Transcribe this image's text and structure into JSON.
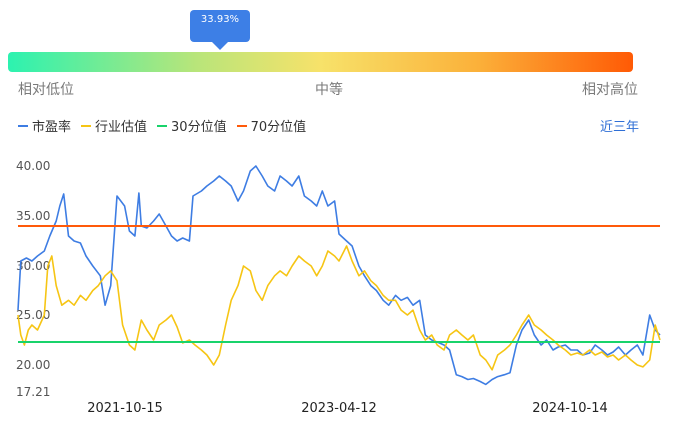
{
  "gauge": {
    "percentile_label": "33.93%",
    "percentile": 33.93,
    "left_label": "相对低位",
    "mid_label": "中等",
    "right_label": "相对高位"
  },
  "legend": [
    {
      "label": "市盈率",
      "color": "#3e7de3"
    },
    {
      "label": "行业估值",
      "color": "#f6c514"
    },
    {
      "label": "30分位值",
      "color": "#19d36b"
    },
    {
      "label": "70分位值",
      "color": "#ff5a0a"
    }
  ],
  "period_label": "近三年",
  "chart_data": {
    "type": "line",
    "ylim": [
      17.21,
      42
    ],
    "y_ticks": [
      "40.00",
      "35.00",
      "30.00",
      "25.00",
      "20.00",
      "17.21"
    ],
    "x_ticks": [
      "2021-10-15",
      "2023-04-12",
      "2024-10-14"
    ],
    "x_range": [
      "2021-01-25",
      "2025-06-27"
    ],
    "series": [
      {
        "name": "市盈率",
        "color": "#3e7de3",
        "points": [
          [
            "2021-01-25",
            25.5
          ],
          [
            "2021-02-01",
            30.5
          ],
          [
            "2021-02-15",
            30.8
          ],
          [
            "2021-03-01",
            30.5
          ],
          [
            "2021-03-15",
            31.0
          ],
          [
            "2021-04-01",
            31.5
          ],
          [
            "2021-04-15",
            33.0
          ],
          [
            "2021-05-01",
            34.5
          ],
          [
            "2021-05-10",
            36.0
          ],
          [
            "2021-05-20",
            37.2
          ],
          [
            "2021-06-01",
            33.0
          ],
          [
            "2021-06-15",
            32.5
          ],
          [
            "2021-07-01",
            32.3
          ],
          [
            "2021-07-15",
            31.0
          ],
          [
            "2021-08-01",
            30.0
          ],
          [
            "2021-08-20",
            29.0
          ],
          [
            "2021-09-01",
            26.0
          ],
          [
            "2021-09-15",
            28.0
          ],
          [
            "2021-10-01",
            37.0
          ],
          [
            "2021-10-20",
            36.0
          ],
          [
            "2021-11-01",
            33.5
          ],
          [
            "2021-11-15",
            33.0
          ],
          [
            "2021-11-25",
            37.3
          ],
          [
            "2021-12-01",
            34.0
          ],
          [
            "2021-12-15",
            33.8
          ],
          [
            "2022-01-01",
            34.5
          ],
          [
            "2022-01-15",
            35.2
          ],
          [
            "2022-02-01",
            34.0
          ],
          [
            "2022-02-15",
            33.0
          ],
          [
            "2022-03-01",
            32.5
          ],
          [
            "2022-03-15",
            32.8
          ],
          [
            "2022-04-01",
            32.5
          ],
          [
            "2022-04-10",
            37.0
          ],
          [
            "2022-05-01",
            37.5
          ],
          [
            "2022-05-15",
            38.0
          ],
          [
            "2022-06-01",
            38.5
          ],
          [
            "2022-06-15",
            39.0
          ],
          [
            "2022-07-01",
            38.5
          ],
          [
            "2022-07-15",
            38.0
          ],
          [
            "2022-08-01",
            36.5
          ],
          [
            "2022-08-15",
            37.5
          ],
          [
            "2022-09-01",
            39.5
          ],
          [
            "2022-09-15",
            40.0
          ],
          [
            "2022-10-01",
            39.0
          ],
          [
            "2022-10-15",
            38.0
          ],
          [
            "2022-11-01",
            37.5
          ],
          [
            "2022-11-15",
            39.0
          ],
          [
            "2022-12-01",
            38.5
          ],
          [
            "2022-12-15",
            38.0
          ],
          [
            "2023-01-01",
            39.0
          ],
          [
            "2023-01-15",
            37.0
          ],
          [
            "2023-02-01",
            36.5
          ],
          [
            "2023-02-15",
            36.0
          ],
          [
            "2023-03-01",
            37.5
          ],
          [
            "2023-03-15",
            36.0
          ],
          [
            "2023-04-01",
            36.5
          ],
          [
            "2023-04-12",
            33.2
          ],
          [
            "2023-05-01",
            32.5
          ],
          [
            "2023-05-15",
            32.0
          ],
          [
            "2023-06-01",
            30.0
          ],
          [
            "2023-06-15",
            29.0
          ],
          [
            "2023-07-01",
            28.0
          ],
          [
            "2023-07-15",
            27.5
          ],
          [
            "2023-08-01",
            26.5
          ],
          [
            "2023-08-15",
            26.0
          ],
          [
            "2023-09-01",
            27.0
          ],
          [
            "2023-09-15",
            26.5
          ],
          [
            "2023-10-01",
            26.8
          ],
          [
            "2023-10-15",
            26.0
          ],
          [
            "2023-11-01",
            26.5
          ],
          [
            "2023-11-15",
            23.0
          ],
          [
            "2023-12-01",
            22.5
          ],
          [
            "2023-12-15",
            22.3
          ],
          [
            "2024-01-01",
            22.0
          ],
          [
            "2024-01-15",
            21.5
          ],
          [
            "2024-02-01",
            19.0
          ],
          [
            "2024-02-15",
            18.8
          ],
          [
            "2024-03-01",
            18.5
          ],
          [
            "2024-03-15",
            18.6
          ],
          [
            "2024-04-01",
            18.3
          ],
          [
            "2024-04-15",
            18.0
          ],
          [
            "2024-05-01",
            18.5
          ],
          [
            "2024-05-15",
            18.8
          ],
          [
            "2024-06-01",
            19.0
          ],
          [
            "2024-06-15",
            19.2
          ],
          [
            "2024-07-01",
            22.0
          ],
          [
            "2024-07-15",
            23.5
          ],
          [
            "2024-08-01",
            24.5
          ],
          [
            "2024-08-15",
            23.0
          ],
          [
            "2024-09-01",
            22.0
          ],
          [
            "2024-09-15",
            22.5
          ],
          [
            "2024-10-01",
            21.5
          ],
          [
            "2024-10-14",
            21.8
          ],
          [
            "2024-11-01",
            22.0
          ],
          [
            "2024-11-15",
            21.5
          ],
          [
            "2024-12-01",
            21.5
          ],
          [
            "2024-12-15",
            21.0
          ],
          [
            "2025-01-01",
            21.2
          ],
          [
            "2025-01-15",
            22.0
          ],
          [
            "2025-02-01",
            21.5
          ],
          [
            "2025-02-15",
            21.0
          ],
          [
            "2025-03-01",
            21.3
          ],
          [
            "2025-03-15",
            21.8
          ],
          [
            "2025-04-01",
            21.0
          ],
          [
            "2025-04-15",
            21.5
          ],
          [
            "2025-05-01",
            22.0
          ],
          [
            "2025-05-15",
            21.0
          ],
          [
            "2025-06-01",
            25.0
          ],
          [
            "2025-06-15",
            23.5
          ],
          [
            "2025-06-27",
            23.0
          ]
        ]
      },
      {
        "name": "行业估值",
        "color": "#f6c514",
        "points": [
          [
            "2021-01-25",
            25.0
          ],
          [
            "2021-02-01",
            23.0
          ],
          [
            "2021-02-10",
            22.0
          ],
          [
            "2021-02-20",
            23.5
          ],
          [
            "2021-03-01",
            24.0
          ],
          [
            "2021-03-15",
            23.5
          ],
          [
            "2021-04-01",
            25.0
          ],
          [
            "2021-04-10",
            30.0
          ],
          [
            "2021-04-20",
            31.0
          ],
          [
            "2021-05-01",
            28.0
          ],
          [
            "2021-05-15",
            26.0
          ],
          [
            "2021-06-01",
            26.5
          ],
          [
            "2021-06-15",
            26.0
          ],
          [
            "2021-07-01",
            27.0
          ],
          [
            "2021-07-15",
            26.5
          ],
          [
            "2021-08-01",
            27.5
          ],
          [
            "2021-08-15",
            28.0
          ],
          [
            "2021-09-01",
            29.0
          ],
          [
            "2021-09-15",
            29.5
          ],
          [
            "2021-10-01",
            28.5
          ],
          [
            "2021-10-15",
            24.0
          ],
          [
            "2021-11-01",
            22.0
          ],
          [
            "2021-11-15",
            21.5
          ],
          [
            "2021-12-01",
            24.5
          ],
          [
            "2021-12-15",
            23.5
          ],
          [
            "2022-01-01",
            22.5
          ],
          [
            "2022-01-15",
            24.0
          ],
          [
            "2022-02-01",
            24.5
          ],
          [
            "2022-02-15",
            25.0
          ],
          [
            "2022-03-01",
            23.8
          ],
          [
            "2022-03-15",
            22.2
          ],
          [
            "2022-04-01",
            22.5
          ],
          [
            "2022-04-15",
            22.0
          ],
          [
            "2022-05-01",
            21.5
          ],
          [
            "2022-05-15",
            21.0
          ],
          [
            "2022-06-01",
            20.0
          ],
          [
            "2022-06-15",
            21.0
          ],
          [
            "2022-07-01",
            24.0
          ],
          [
            "2022-07-15",
            26.5
          ],
          [
            "2022-08-01",
            28.0
          ],
          [
            "2022-08-15",
            30.0
          ],
          [
            "2022-09-01",
            29.5
          ],
          [
            "2022-09-15",
            27.5
          ],
          [
            "2022-10-01",
            26.5
          ],
          [
            "2022-10-15",
            28.0
          ],
          [
            "2022-11-01",
            29.0
          ],
          [
            "2022-11-15",
            29.5
          ],
          [
            "2022-12-01",
            29.0
          ],
          [
            "2022-12-15",
            30.0
          ],
          [
            "2023-01-01",
            31.0
          ],
          [
            "2023-01-15",
            30.5
          ],
          [
            "2023-02-01",
            30.0
          ],
          [
            "2023-02-15",
            29.0
          ],
          [
            "2023-03-01",
            30.0
          ],
          [
            "2023-03-15",
            31.5
          ],
          [
            "2023-04-01",
            31.0
          ],
          [
            "2023-04-12",
            30.5
          ],
          [
            "2023-05-01",
            32.0
          ],
          [
            "2023-05-15",
            30.5
          ],
          [
            "2023-06-01",
            29.0
          ],
          [
            "2023-06-15",
            29.5
          ],
          [
            "2023-07-01",
            28.5
          ],
          [
            "2023-07-15",
            28.0
          ],
          [
            "2023-08-01",
            27.0
          ],
          [
            "2023-08-15",
            26.5
          ],
          [
            "2023-09-01",
            26.5
          ],
          [
            "2023-09-15",
            25.5
          ],
          [
            "2023-10-01",
            25.0
          ],
          [
            "2023-10-15",
            25.5
          ],
          [
            "2023-11-01",
            23.5
          ],
          [
            "2023-11-15",
            22.5
          ],
          [
            "2023-12-01",
            23.0
          ],
          [
            "2023-12-15",
            22.0
          ],
          [
            "2024-01-01",
            21.5
          ],
          [
            "2024-01-15",
            23.0
          ],
          [
            "2024-02-01",
            23.5
          ],
          [
            "2024-02-15",
            23.0
          ],
          [
            "2024-03-01",
            22.5
          ],
          [
            "2024-03-15",
            23.0
          ],
          [
            "2024-04-01",
            21.0
          ],
          [
            "2024-04-15",
            20.5
          ],
          [
            "2024-05-01",
            19.5
          ],
          [
            "2024-05-15",
            21.0
          ],
          [
            "2024-06-01",
            21.5
          ],
          [
            "2024-06-15",
            22.0
          ],
          [
            "2024-07-01",
            23.0
          ],
          [
            "2024-07-15",
            24.0
          ],
          [
            "2024-08-01",
            25.0
          ],
          [
            "2024-08-15",
            24.0
          ],
          [
            "2024-09-01",
            23.5
          ],
          [
            "2024-09-15",
            23.0
          ],
          [
            "2024-10-01",
            22.5
          ],
          [
            "2024-10-14",
            22.0
          ],
          [
            "2024-11-01",
            21.5
          ],
          [
            "2024-11-15",
            21.0
          ],
          [
            "2024-12-01",
            21.2
          ],
          [
            "2024-12-15",
            21.0
          ],
          [
            "2025-01-01",
            21.5
          ],
          [
            "2025-01-15",
            21.0
          ],
          [
            "2025-02-01",
            21.3
          ],
          [
            "2025-02-15",
            20.8
          ],
          [
            "2025-03-01",
            21.0
          ],
          [
            "2025-03-15",
            20.5
          ],
          [
            "2025-04-01",
            21.0
          ],
          [
            "2025-04-15",
            20.5
          ],
          [
            "2025-05-01",
            20.0
          ],
          [
            "2025-05-15",
            19.8
          ],
          [
            "2025-06-01",
            20.5
          ],
          [
            "2025-06-15",
            24.0
          ],
          [
            "2025-06-27",
            22.5
          ]
        ]
      },
      {
        "name": "30分位值",
        "color": "#19d36b",
        "constant": 22.3
      },
      {
        "name": "70分位值",
        "color": "#ff5a0a",
        "constant": 34.0
      }
    ]
  }
}
